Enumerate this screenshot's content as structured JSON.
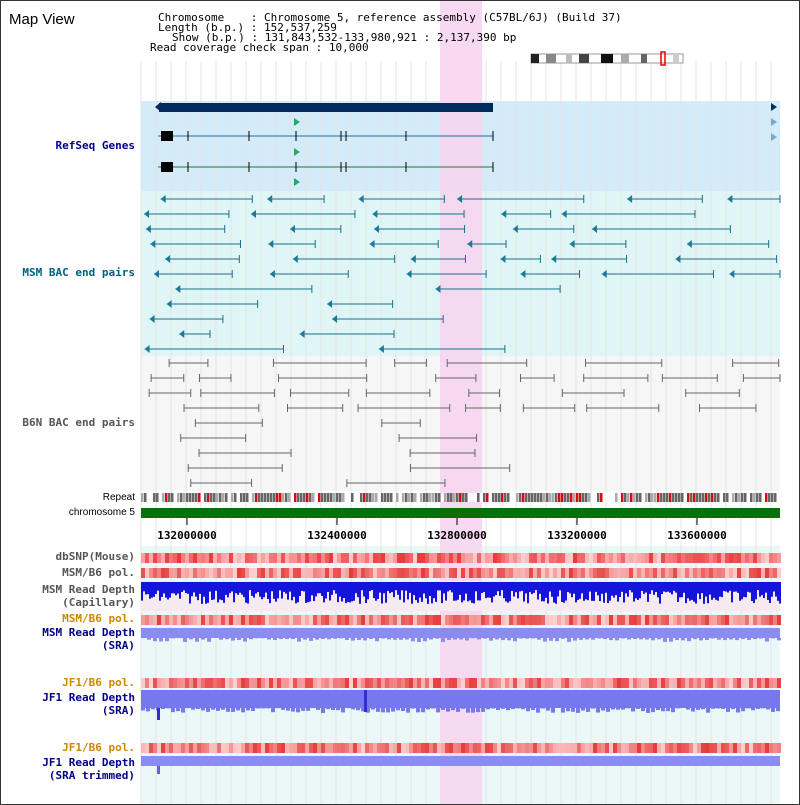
{
  "title": "Map View",
  "header": {
    "chromosome_label": "Chromosome    ",
    "chromosome_value": "Chromosome 5, reference assembly (C57BL/6J) (Build 37)",
    "length_label": "Length (b.p.)",
    "length_value": "152,537,259",
    "show_label": "Show (b.p.)",
    "show_value": "131,843,532-133,980,921 : 2,137,390 bp",
    "coverage_label": "Read coverage check span",
    "coverage_value": "10,000"
  },
  "tracks": {
    "refseq": "RefSeq Genes",
    "msm_bac": "MSM BAC end pairs",
    "b6n_bac": "B6N BAC end pairs",
    "repeat": "Repeat",
    "chromosome": "chromosome 5",
    "dbsnp": "dbSNP(Mouse)",
    "msm_b6_pol_1": "MSM/B6 pol.",
    "msm_read_depth_cap_1": "MSM Read Depth",
    "msm_read_depth_cap_2": "(Capillary)",
    "msm_b6_pol_2": "MSM/B6 pol.",
    "msm_read_depth_sra_1": "MSM Read Depth",
    "msm_read_depth_sra_2": "(SRA)",
    "jf1_b6_pol_1": "JF1/B6 pol.",
    "jf1_read_depth_sra_1": "JF1 Read Depth",
    "jf1_read_depth_sra_2": "(SRA)",
    "jf1_b6_pol_2": "JF1/B6 pol.",
    "jf1_read_depth_trim_1": "JF1 Read Depth",
    "jf1_read_depth_trim_2": "(SRA trimmed)"
  },
  "axis": {
    "ticks": [
      "132000000",
      "132400000",
      "132800000",
      "133200000",
      "133600000"
    ]
  },
  "colors": {
    "refseq_bg": "#d4ecfa",
    "msm_bg": "#e0f6f6",
    "b6n_bg": "#f6f6f6",
    "highlight": "#f6d6f0",
    "chromosome_bar": "#0a6e0a",
    "msm_label": "#006080",
    "b6n_label": "#555555",
    "refseq_label": "#00008b",
    "pol_label_orange": "#cc8800",
    "depth_label_blue": "#00008b"
  }
}
